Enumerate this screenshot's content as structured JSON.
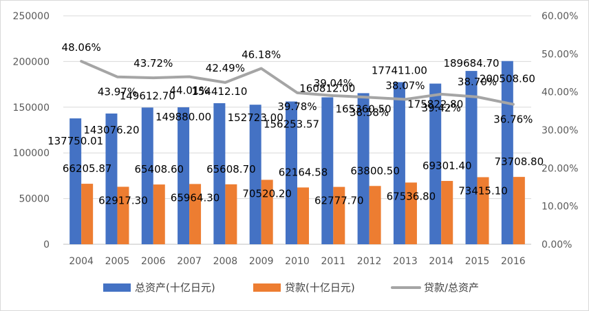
{
  "chart_data": {
    "type": "bar",
    "categories": [
      "2004",
      "2005",
      "2006",
      "2007",
      "2008",
      "2009",
      "2010",
      "2011",
      "2012",
      "2013",
      "2014",
      "2015",
      "2016"
    ],
    "series": [
      {
        "name": "总资产(十亿日元)",
        "type": "bar",
        "axis": "left",
        "color": "#4472C4",
        "values": [
          137750.01,
          143076.2,
          149612.7,
          149880.0,
          154412.1,
          152723.0,
          156253.57,
          160812.0,
          165360.5,
          177411.0,
          175822.8,
          189684.7,
          200508.6
        ],
        "labels": [
          "137750.01",
          "143076.20",
          "149612.70",
          "149880.00",
          "154412.10",
          "152723.00",
          "156253.57",
          "160812.00",
          "165360.50",
          "177411.00",
          "175822.80",
          "189684.70",
          "200508.60"
        ]
      },
      {
        "name": "贷款(十亿日元)",
        "type": "bar",
        "axis": "left",
        "color": "#ED7D31",
        "values": [
          66205.87,
          62917.3,
          65408.6,
          65964.3,
          65608.7,
          70520.2,
          62164.58,
          62777.7,
          63800.5,
          67536.8,
          69301.4,
          73415.1,
          73708.8
        ],
        "labels": [
          "66205.87",
          "62917.30",
          "65408.60",
          "65964.30",
          "65608.70",
          "70520.20",
          "62164.58",
          "62777.70",
          "63800.50",
          "67536.80",
          "69301.40",
          "73415.10",
          "73708.80"
        ]
      },
      {
        "name": "贷款/总资产",
        "type": "line",
        "axis": "right",
        "color": "#A5A5A5",
        "values": [
          48.06,
          43.97,
          43.72,
          44.01,
          42.49,
          46.18,
          39.78,
          39.04,
          38.58,
          38.07,
          39.42,
          38.7,
          36.76
        ],
        "labels": [
          "48.06%",
          "43.97%",
          "43.72%",
          "44.01%",
          "42.49%",
          "46.18%",
          "39.78%",
          "39.04%",
          "38.58%",
          "38.07%",
          "39.42%",
          "38.70%",
          "36.76%"
        ]
      }
    ],
    "y_left": {
      "min": 0,
      "max": 250000,
      "ticks": [
        "0",
        "50000",
        "100000",
        "150000",
        "200000",
        "250000"
      ]
    },
    "y_right": {
      "min": 0,
      "max": 60,
      "ticks": [
        "0.00%",
        "10.00%",
        "20.00%",
        "30.00%",
        "40.00%",
        "50.00%",
        "60.00%"
      ]
    },
    "grid": true,
    "legend_position": "bottom"
  }
}
